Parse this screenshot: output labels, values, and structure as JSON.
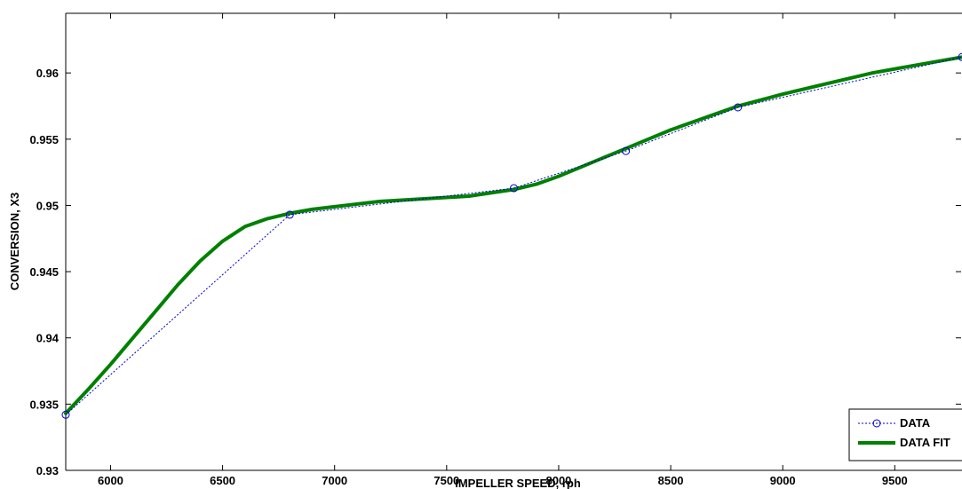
{
  "chart_data": {
    "type": "line",
    "xlabel": "IMPELLER SPEED, rph",
    "ylabel": "CONVERSION, X3",
    "xlim": [
      5800,
      9800
    ],
    "ylim": [
      0.93,
      0.9645
    ],
    "xticks": [
      "6000",
      "6500",
      "7000",
      "7500",
      "8000",
      "8500",
      "9000",
      "9500"
    ],
    "yticks": [
      "0.93",
      "0.935",
      "0.94",
      "0.945",
      "0.95",
      "0.955",
      "0.96"
    ],
    "grid": false,
    "legend_position": "bottom-right",
    "series": [
      {
        "name": "DATA",
        "style": "dotted-circles",
        "color": "#0000cc",
        "x": [
          5800,
          6800,
          7800,
          8300,
          8800,
          9800
        ],
        "y": [
          0.9342,
          0.9493,
          0.9513,
          0.9541,
          0.9574,
          0.9612
        ]
      },
      {
        "name": "DATA FIT",
        "style": "thick-solid",
        "color": "#008000",
        "x": [
          5800,
          5900,
          6000,
          6100,
          6200,
          6300,
          6400,
          6500,
          6600,
          6700,
          6800,
          6900,
          7000,
          7200,
          7400,
          7600,
          7800,
          7900,
          8000,
          8100,
          8200,
          8300,
          8400,
          8500,
          8600,
          8700,
          8800,
          9000,
          9200,
          9400,
          9600,
          9800
        ],
        "y": [
          0.9343,
          0.9361,
          0.938,
          0.94,
          0.942,
          0.944,
          0.9458,
          0.9473,
          0.9484,
          0.949,
          0.9494,
          0.9497,
          0.9499,
          0.9503,
          0.9505,
          0.9507,
          0.9512,
          0.9516,
          0.9522,
          0.9529,
          0.9536,
          0.9543,
          0.955,
          0.9557,
          0.9563,
          0.9569,
          0.9575,
          0.9584,
          0.9592,
          0.96,
          0.9606,
          0.9612
        ]
      }
    ]
  }
}
